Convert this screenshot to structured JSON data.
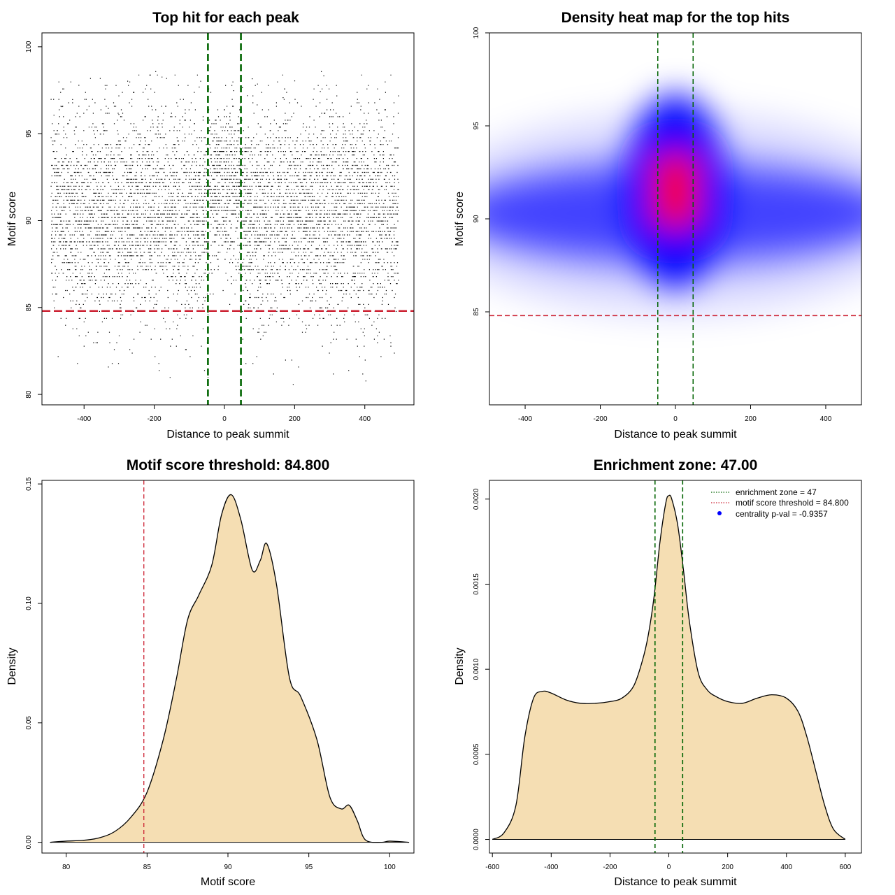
{
  "colors": {
    "green_line": "#006400",
    "red_line": "#cc2233",
    "fill": "#f5deb3",
    "point": "#000000",
    "heat_low": "#ffffff",
    "heat_mid": "#0000ff",
    "heat_high": "#ff0000",
    "legend_dot": "#0000ff"
  },
  "chart_data": [
    {
      "id": "scatter",
      "type": "scatter",
      "title": "Top hit for each peak",
      "xlabel": "Distance to peak summit",
      "ylabel": "Motif score",
      "xlim": [
        -520,
        540
      ],
      "ylim": [
        79.4,
        100.8
      ],
      "xticks": [
        -400,
        -200,
        0,
        200,
        400
      ],
      "yticks": [
        80,
        85,
        90,
        95,
        100
      ],
      "vlines": [
        -47,
        47
      ],
      "hline": 84.8,
      "point_count": 6500,
      "x_range": [
        -495,
        495
      ],
      "score_mean": 90.5,
      "score_sd": 3.0,
      "central_enrichment_range": [
        -47,
        47
      ],
      "central_score_mean": 92.0
    },
    {
      "id": "heatmap",
      "type": "heatmap",
      "title": "Density heat map for the top hits",
      "xlabel": "Distance to peak summit",
      "ylabel": "Motif score",
      "xlim": [
        -495,
        495
      ],
      "ylim": [
        80,
        100
      ],
      "xticks": [
        -400,
        -200,
        0,
        200,
        400
      ],
      "yticks": [
        85,
        90,
        95,
        100
      ],
      "vlines": [
        -47,
        47
      ],
      "hline": 84.8,
      "background_score_mean": 90.3,
      "center_hotspots": [
        {
          "x": 0,
          "y": 92.4
        },
        {
          "x": 0,
          "y": 90.6
        }
      ]
    },
    {
      "id": "score_density",
      "type": "area",
      "title": "Motif score threshold: 84.800",
      "xlabel": "Motif score",
      "ylabel": "Density",
      "xlim": [
        78.5,
        101.5
      ],
      "ylim": [
        -0.0045,
        0.1515
      ],
      "xticks": [
        80,
        85,
        90,
        95,
        100
      ],
      "yticks": [
        0.0,
        0.05,
        0.1,
        0.15
      ],
      "ytick_labels": [
        "0.00",
        "0.05",
        "0.10",
        "0.15"
      ],
      "vline": 84.8,
      "x": [
        79,
        80,
        81,
        82,
        83,
        84,
        85,
        86,
        86.8,
        87.5,
        88.2,
        89,
        89.6,
        90.2,
        90.8,
        91.5,
        92,
        92.4,
        93,
        93.8,
        94.5,
        95.5,
        96.3,
        97,
        97.5,
        98,
        98.5,
        99.5,
        100,
        101.2
      ],
      "y": [
        0.0,
        0.0005,
        0.0008,
        0.0018,
        0.0045,
        0.0105,
        0.021,
        0.043,
        0.068,
        0.093,
        0.1035,
        0.116,
        0.137,
        0.1455,
        0.135,
        0.114,
        0.118,
        0.125,
        0.108,
        0.069,
        0.061,
        0.043,
        0.019,
        0.014,
        0.0155,
        0.009,
        0.001,
        0.0,
        0.0005,
        0.0
      ]
    },
    {
      "id": "distance_density",
      "type": "area",
      "title": "Enrichment zone: 47.00",
      "xlabel": "Distance to peak summit",
      "ylabel": "Density",
      "xlim": [
        -610,
        655
      ],
      "ylim": [
        -8e-05,
        0.00211
      ],
      "xticks": [
        -600,
        -400,
        -200,
        0,
        200,
        400,
        600
      ],
      "yticks": [
        0.0,
        0.0005,
        0.001,
        0.0015,
        0.002
      ],
      "ytick_labels": [
        "0.0000",
        "0.0005",
        "0.0010",
        "0.0015",
        "0.0020"
      ],
      "vlines": [
        -47,
        47
      ],
      "x": [
        -600,
        -560,
        -520,
        -490,
        -460,
        -430,
        -400,
        -350,
        -300,
        -250,
        -200,
        -160,
        -120,
        -90,
        -70,
        -50,
        -30,
        -10,
        0,
        10,
        30,
        50,
        70,
        100,
        130,
        160,
        200,
        250,
        300,
        350,
        400,
        440,
        470,
        500,
        530,
        560,
        600
      ],
      "y": [
        0.0,
        4e-05,
        0.0002,
        0.0006,
        0.00083,
        0.00087,
        0.00086,
        0.00082,
        0.0008,
        0.0008,
        0.00081,
        0.00083,
        0.0009,
        0.00105,
        0.0012,
        0.00143,
        0.00175,
        0.00198,
        0.00202,
        0.002,
        0.00185,
        0.00158,
        0.00128,
        0.00098,
        0.00088,
        0.00084,
        0.00081,
        0.0008,
        0.00083,
        0.00085,
        0.00083,
        0.00075,
        0.0006,
        0.0004,
        0.0002,
        6e-05,
        0.0
      ],
      "legend": [
        {
          "label": "enrichment zone = 47",
          "style": "green-dotted"
        },
        {
          "label": "motif score threshold = 84.800",
          "style": "red-dotted"
        },
        {
          "label": "centrality p-val = -0.9357",
          "style": "blue-dot"
        }
      ]
    }
  ]
}
